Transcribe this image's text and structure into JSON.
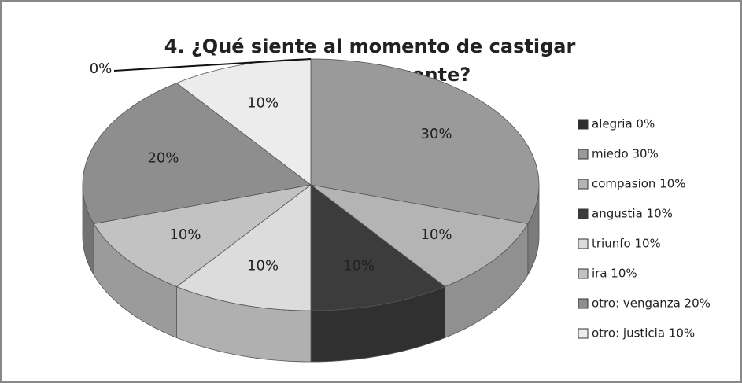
{
  "chart_data": {
    "type": "pie",
    "title": "4. ¿Qué siente al momento de castigar a un delincuente?",
    "categories": [
      "alegria 0%",
      "miedo 30%",
      "compasion 10%",
      "angustia 10%",
      "triunfo 10%",
      "ira 10%",
      "otro: venganza 20%",
      "otro: justicia 10%"
    ],
    "values": [
      0,
      30,
      10,
      10,
      10,
      10,
      20,
      10
    ],
    "value_labels": [
      "0%",
      "30%",
      "10%",
      "10%",
      "10%",
      "10%",
      "20%",
      "10%"
    ],
    "colors": [
      "#2e2e2e",
      "#9a9a9a",
      "#b4b4b4",
      "#3c3c3c",
      "#dcdcdc",
      "#c2c2c2",
      "#8e8e8e",
      "#ececec"
    ],
    "legend": "right"
  }
}
